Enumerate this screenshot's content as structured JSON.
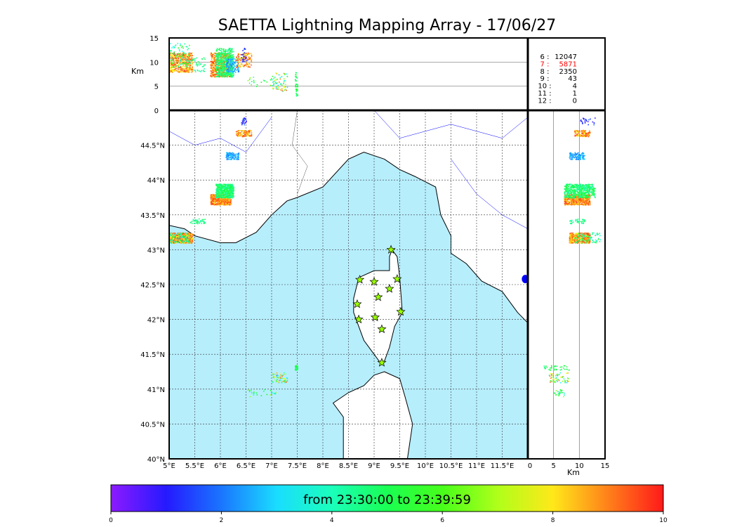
{
  "title": "SAETTA Lightning Mapping Array - 17/06/27",
  "chart_data": {
    "type": "scatter",
    "title": "SAETTA Lightning Mapping Array - 17/06/27",
    "map": {
      "lon_range": [
        5,
        12
      ],
      "lat_range": [
        40,
        45
      ],
      "lon_ticks": [
        "5°E",
        "5.5°E",
        "6°E",
        "6.5°E",
        "7°E",
        "7.5°E",
        "8°E",
        "8.5°E",
        "9°E",
        "9.5°E",
        "10°E",
        "10.5°E",
        "11°E",
        "11.5°E"
      ],
      "lat_ticks": [
        "40°N",
        "40.5°N",
        "41°N",
        "41.5°N",
        "42°N",
        "42.5°N",
        "43°N",
        "43.5°N",
        "44°N",
        "44.5°N"
      ]
    },
    "altitude": {
      "range": [
        0,
        15
      ],
      "label": "Km",
      "ticks": [
        "0",
        "5",
        "10",
        "15"
      ]
    },
    "station_counts": [
      {
        "label": "6",
        "value": "12047"
      },
      {
        "label": "7",
        "value": "5871",
        "highlight": true
      },
      {
        "label": "8",
        "value": "2350"
      },
      {
        "label": "9",
        "value": "43"
      },
      {
        "label": "10",
        "value": "4"
      },
      {
        "label": "11",
        "value": "1"
      },
      {
        "label": "12",
        "value": "0"
      }
    ],
    "colorbar": {
      "range": [
        0,
        10
      ],
      "ticks": [
        "0",
        "2",
        "4",
        "6",
        "8",
        "10"
      ],
      "label": "from 23:30:00 to 23:39:59"
    },
    "stations": [
      [
        9.33,
        43.0
      ],
      [
        8.72,
        42.57
      ],
      [
        9.0,
        42.54
      ],
      [
        9.45,
        42.58
      ],
      [
        9.3,
        42.44
      ],
      [
        9.08,
        42.32
      ],
      [
        8.67,
        42.22
      ],
      [
        9.52,
        42.11
      ],
      [
        9.02,
        42.03
      ],
      [
        8.7,
        42.0
      ],
      [
        9.15,
        41.86
      ],
      [
        9.15,
        41.38
      ]
    ],
    "clusters": [
      {
        "lon": [
          5.0,
          5.45
        ],
        "lat": [
          43.1,
          43.25
        ],
        "alt": [
          8,
          12
        ],
        "c": [
          7.5,
          9.8
        ],
        "n": 500
      },
      {
        "lon": [
          5.0,
          5.4
        ],
        "lat": [
          43.1,
          43.25
        ],
        "alt": [
          9,
          14
        ],
        "c": [
          3,
          6
        ],
        "n": 80
      },
      {
        "lon": [
          5.8,
          6.2
        ],
        "lat": [
          43.65,
          43.8
        ],
        "alt": [
          7,
          12
        ],
        "c": [
          8,
          9.8
        ],
        "n": 600
      },
      {
        "lon": [
          5.9,
          6.25
        ],
        "lat": [
          43.75,
          43.95
        ],
        "alt": [
          7,
          13
        ],
        "c": [
          4,
          5.5
        ],
        "n": 500
      },
      {
        "lon": [
          6.1,
          6.35
        ],
        "lat": [
          44.3,
          44.4
        ],
        "alt": [
          8,
          11
        ],
        "c": [
          2,
          3
        ],
        "n": 120
      },
      {
        "lon": [
          6.3,
          6.6
        ],
        "lat": [
          44.63,
          44.72
        ],
        "alt": [
          9,
          12
        ],
        "c": [
          7.5,
          9.8
        ],
        "n": 120
      },
      {
        "lon": [
          6.4,
          6.5
        ],
        "lat": [
          44.8,
          44.9
        ],
        "alt": [
          10,
          13
        ],
        "c": [
          0.5,
          2
        ],
        "n": 25
      },
      {
        "lon": [
          5.4,
          5.7
        ],
        "lat": [
          43.38,
          43.45
        ],
        "alt": [
          8,
          11
        ],
        "c": [
          4,
          5
        ],
        "n": 40
      },
      {
        "lon": [
          7.0,
          7.3
        ],
        "lat": [
          41.1,
          41.25
        ],
        "alt": [
          4,
          8
        ],
        "c": [
          2.5,
          9.5
        ],
        "n": 60
      },
      {
        "lon": [
          7.45,
          7.5
        ],
        "lat": [
          41.28,
          41.35
        ],
        "alt": [
          3,
          8
        ],
        "c": [
          4.5,
          5.5
        ],
        "n": 40
      },
      {
        "lon": [
          6.5,
          7.1
        ],
        "lat": [
          40.9,
          41.0
        ],
        "alt": [
          5,
          7
        ],
        "c": [
          3,
          7
        ],
        "n": 25
      }
    ],
    "extra_marker": [
      11.95,
      42.58
    ]
  }
}
